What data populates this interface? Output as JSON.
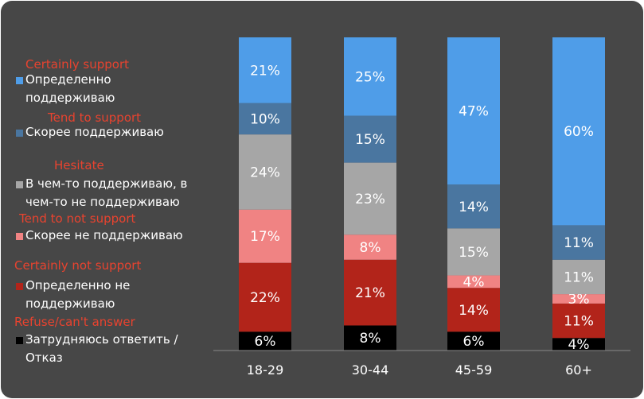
{
  "chart_data": {
    "type": "stacked_bar",
    "categories": [
      "18-29",
      "30-44",
      "45-59",
      "60+"
    ],
    "ylim": [
      0,
      100
    ],
    "series": [
      {
        "name": "Определенно поддерживаю",
        "name_en": "Certainly support",
        "color": "#4f9de8",
        "values": [
          21,
          25,
          47,
          60
        ],
        "value_labels": [
          "21%",
          "25%",
          "47%",
          "60%"
        ]
      },
      {
        "name": "Скорее поддерживаю",
        "name_en": "Tend to support",
        "color": "#4a76a0",
        "values": [
          10,
          15,
          14,
          11
        ],
        "value_labels": [
          "10%",
          "15%",
          "14%",
          "11%"
        ]
      },
      {
        "name": "В чем-то поддерживаю, в чем-то не поддерживаю",
        "name_en": "Hesitate",
        "color": "#a6a6a6",
        "values": [
          24,
          23,
          15,
          11
        ],
        "value_labels": [
          "24%",
          "23%",
          "15%",
          "11%"
        ]
      },
      {
        "name": "Скорее не поддерживаю",
        "name_en": "Tend to not support",
        "color": "#f08383",
        "values": [
          17,
          8,
          4,
          3
        ],
        "value_labels": [
          "17%",
          "8%",
          "4%",
          "3%"
        ]
      },
      {
        "name": "Определенно не поддерживаю",
        "name_en": "Certainly not support",
        "color": "#b2241a",
        "values": [
          22,
          21,
          14,
          11
        ],
        "value_labels": [
          "22%",
          "21%",
          "14%",
          "11%"
        ]
      },
      {
        "name": "Затрудняюсь ответить / Отказ",
        "name_en": "Refuse/can't answer",
        "color": "#000000",
        "values": [
          6,
          8,
          6,
          4
        ],
        "value_labels": [
          "6%",
          "8%",
          "6%",
          "4%"
        ]
      }
    ]
  }
}
